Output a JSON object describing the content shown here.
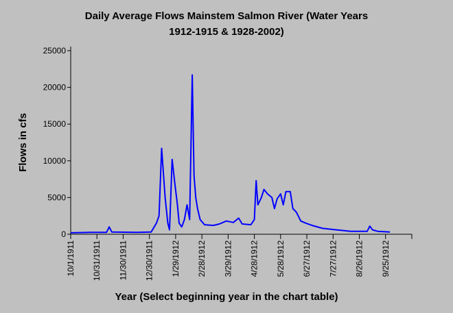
{
  "chart_data": {
    "type": "line",
    "title": "Daily Average Flows Mainstem Salmon River (Water Years",
    "subtitle": "1912-1915 & 1928-2002)",
    "x_label": "Year (Select beginning year in the chart table)",
    "y_label": "Flows in cfs",
    "xlim": [
      "10/1/1911",
      "10/25/1912"
    ],
    "xticks": [
      "10/1/1911",
      "10/31/1911",
      "11/30/1911",
      "12/30/1911",
      "1/29/1912",
      "2/28/1912",
      "3/29/1912",
      "4/28/1912",
      "5/28/1912",
      "6/27/1912",
      "7/27/1912",
      "8/26/1912",
      "9/25/1912"
    ],
    "ylim": [
      0,
      25000
    ],
    "yticks": [
      0,
      5000,
      10000,
      15000,
      20000,
      25000
    ],
    "x": [
      "10/1/1911",
      "10/22/1911",
      "11/11/1911",
      "11/14/1911",
      "11/17/1911",
      "12/16/1911",
      "1/1/1912",
      "1/7/1912",
      "1/10/1912",
      "1/13/1912",
      "1/17/1912",
      "1/20/1912",
      "1/22/1912",
      "1/25/1912",
      "1/28/1912",
      "1/31/1912",
      "2/2/1912",
      "2/5/1912",
      "2/8/1912",
      "2/11/1912",
      "2/14/1912",
      "2/17/1912",
      "2/19/1912",
      "2/21/1912",
      "2/23/1912",
      "2/26/1912",
      "3/2/1912",
      "3/12/1912",
      "3/19/1912",
      "3/27/1912",
      "4/4/1912",
      "4/10/1912",
      "4/14/1912",
      "4/24/1912",
      "4/28/1912",
      "4/30/1912",
      "5/2/1912",
      "5/6/1912",
      "5/9/1912",
      "5/13/1912",
      "5/18/1912",
      "5/21/1912",
      "5/24/1912",
      "5/28/1912",
      "5/31/1912",
      "6/3/1912",
      "6/8/1912",
      "6/11/1912",
      "6/15/1912",
      "6/20/1912",
      "6/26/1912",
      "7/3/1912",
      "7/15/1912",
      "7/31/1912",
      "8/16/1912",
      "9/4/1912",
      "9/7/1912",
      "9/10/1912",
      "9/16/1912",
      "9/30/1912"
    ],
    "series": [
      {
        "color": "#0000ff",
        "values": [
          200,
          250,
          250,
          1000,
          300,
          250,
          300,
          1500,
          2500,
          11700,
          5000,
          1500,
          600,
          10200,
          7000,
          4000,
          1500,
          1000,
          2000,
          4000,
          2000,
          21700,
          8000,
          5000,
          3500,
          2000,
          1300,
          1200,
          1400,
          1800,
          1600,
          2200,
          1400,
          1300,
          2000,
          7300,
          4000,
          5000,
          6100,
          5500,
          5000,
          3500,
          4800,
          5500,
          4000,
          5800,
          5800,
          3500,
          3000,
          1800,
          1500,
          1200,
          800,
          600,
          400,
          400,
          1100,
          600,
          400,
          300
        ]
      }
    ]
  }
}
